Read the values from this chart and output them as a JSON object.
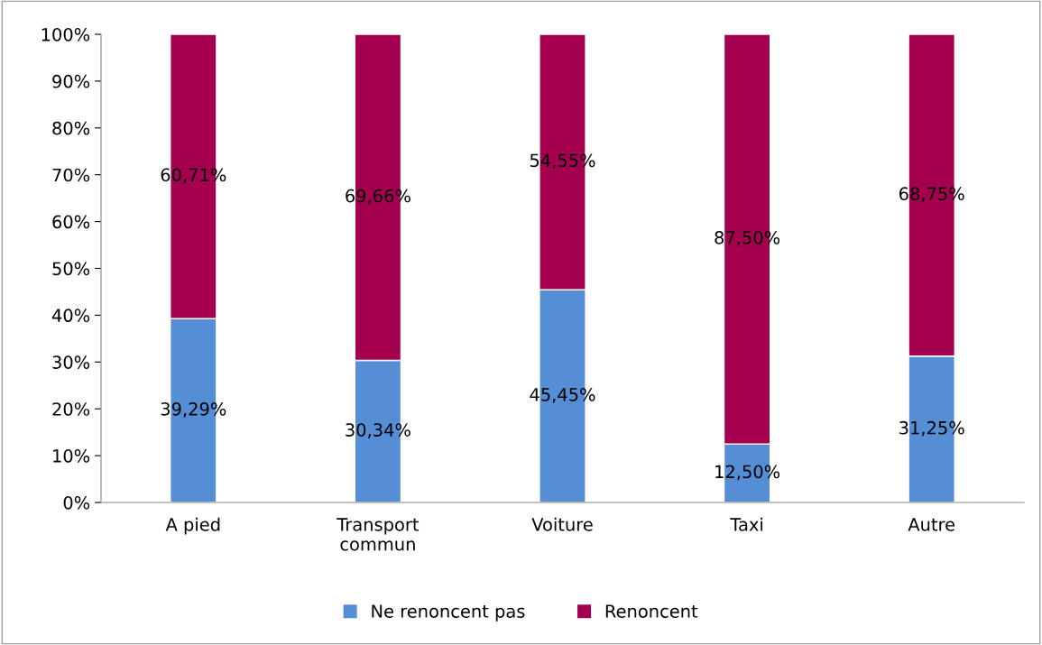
{
  "chart_data": {
    "type": "bar",
    "stacked": true,
    "categories": [
      "A pied",
      "Transport\ncommun",
      "Voiture",
      "Taxi",
      "Autre"
    ],
    "series": [
      {
        "name": "Ne renoncent pas",
        "color": "#558ed5",
        "values": [
          39.29,
          30.34,
          45.45,
          12.5,
          31.25
        ],
        "value_labels": [
          "39,29%",
          "30,34%",
          "45,45%",
          "12,50%",
          "31,25%"
        ]
      },
      {
        "name": "Renoncent",
        "color": "#a50050",
        "values": [
          60.71,
          69.66,
          54.55,
          87.5,
          68.75
        ],
        "value_labels": [
          "60,71%",
          "69,66%",
          "54,55%",
          "87,50%",
          "68,75%"
        ]
      }
    ],
    "ylim": [
      0,
      100
    ],
    "yticks": [
      {
        "value": 0,
        "label": "0%"
      },
      {
        "value": 10,
        "label": "10%"
      },
      {
        "value": 20,
        "label": "20%"
      },
      {
        "value": 30,
        "label": "30%"
      },
      {
        "value": 40,
        "label": "40%"
      },
      {
        "value": 50,
        "label": "50%"
      },
      {
        "value": 60,
        "label": "60%"
      },
      {
        "value": 70,
        "label": "70%"
      },
      {
        "value": 80,
        "label": "80%"
      },
      {
        "value": 90,
        "label": "90%"
      },
      {
        "value": 100,
        "label": "100%"
      }
    ],
    "grid": false,
    "legend": "bottom"
  }
}
